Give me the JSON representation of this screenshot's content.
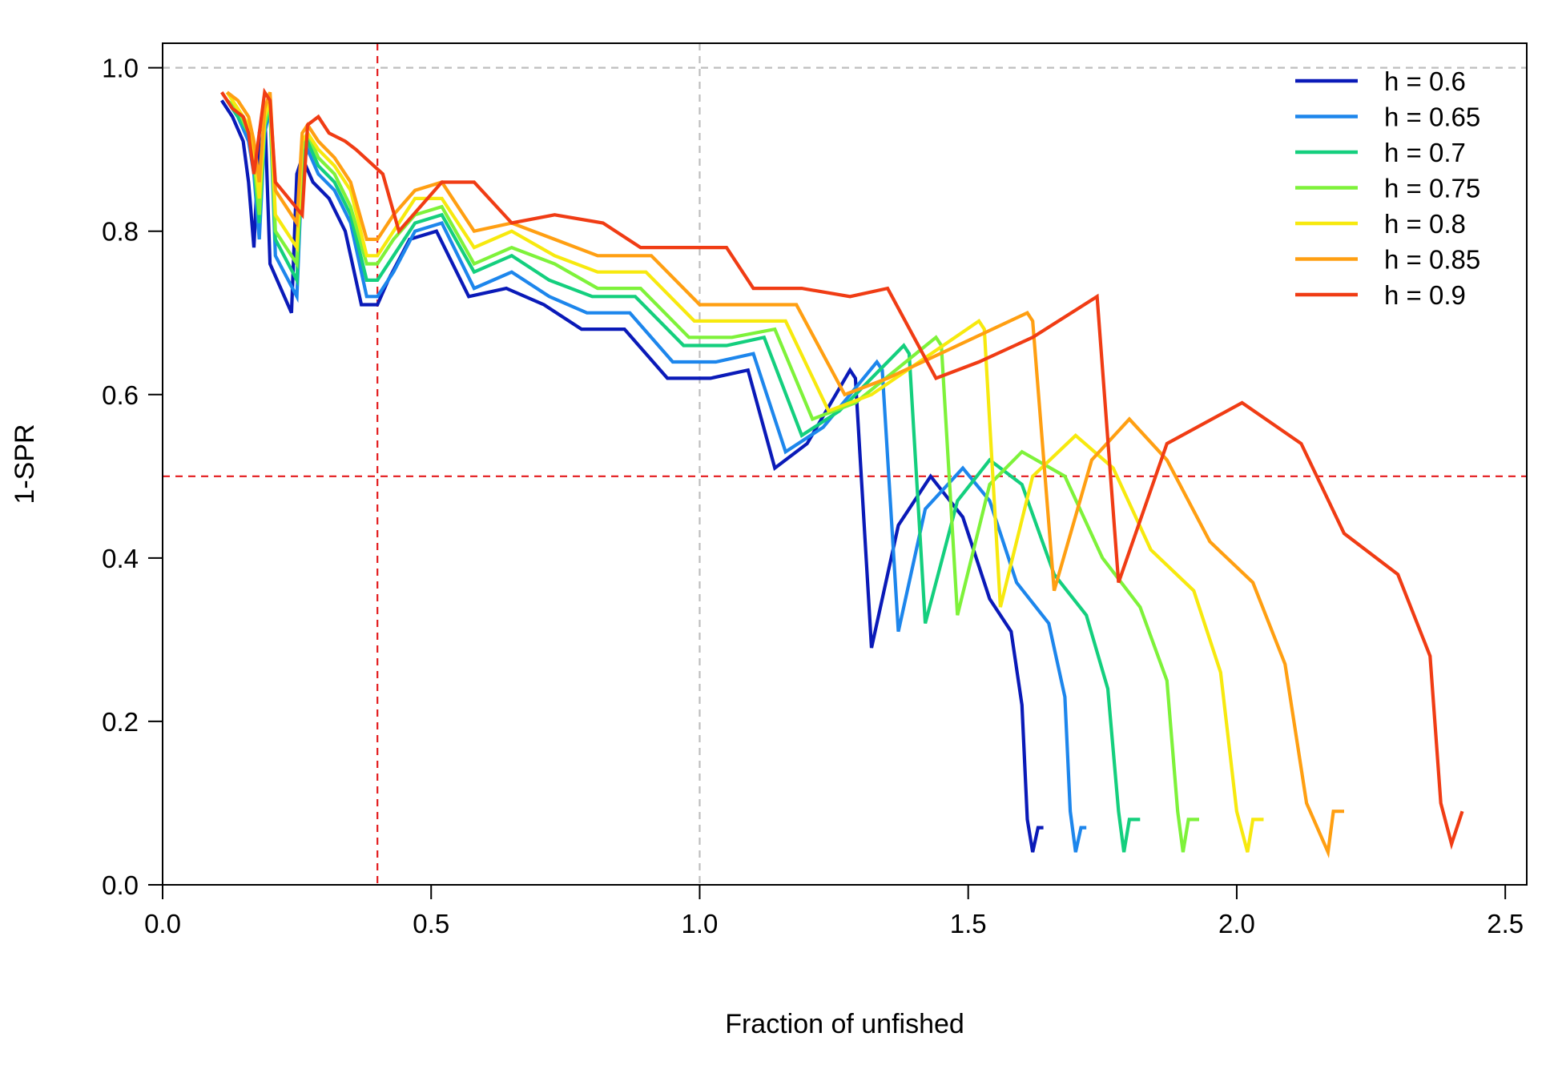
{
  "chart_data": {
    "type": "line",
    "title": "",
    "xlabel": "Fraction of unfished",
    "ylabel": "1-SPR",
    "xlim": [
      0,
      2.54
    ],
    "ylim": [
      0,
      1.03
    ],
    "xticks": [
      0.0,
      0.5,
      1.0,
      1.5,
      2.0,
      2.5
    ],
    "xtick_labels": [
      "0.0",
      "0.5",
      "1.0",
      "1.5",
      "2.0",
      "2.5"
    ],
    "yticks": [
      0.0,
      0.2,
      0.4,
      0.6,
      0.8,
      1.0
    ],
    "ytick_labels": [
      "0.0",
      "0.2",
      "0.4",
      "0.6",
      "0.8",
      "1.0"
    ],
    "grid": false,
    "legend_position": "top-right",
    "reference_lines": [
      {
        "orientation": "horizontal",
        "value": 1.0,
        "color": "#bebebe",
        "style": "dashed"
      },
      {
        "orientation": "vertical",
        "value": 1.0,
        "color": "#bebebe",
        "style": "dashed"
      },
      {
        "orientation": "horizontal",
        "value": 0.5,
        "color": "#e31a1c",
        "style": "dashed"
      },
      {
        "orientation": "vertical",
        "value": 0.4,
        "color": "#e31a1c",
        "style": "dashed"
      }
    ],
    "series": [
      {
        "name": "h = 0.6",
        "color": "#0a1ab8",
        "x": [
          0.11,
          0.13,
          0.15,
          0.16,
          0.17,
          0.18,
          0.19,
          0.2,
          0.24,
          0.25,
          0.26,
          0.28,
          0.31,
          0.34,
          0.37,
          0.4,
          0.42,
          0.46,
          0.51,
          0.57,
          0.64,
          0.71,
          0.78,
          0.86,
          0.94,
          1.02,
          1.09,
          1.14,
          1.2,
          1.28,
          1.29,
          1.32,
          1.37,
          1.43,
          1.49,
          1.54,
          1.58,
          1.6,
          1.61,
          1.62,
          1.63,
          1.64
        ],
        "y": [
          0.96,
          0.94,
          0.91,
          0.86,
          0.78,
          0.92,
          0.95,
          0.76,
          0.7,
          0.87,
          0.89,
          0.86,
          0.84,
          0.8,
          0.71,
          0.71,
          0.74,
          0.79,
          0.8,
          0.72,
          0.73,
          0.71,
          0.68,
          0.68,
          0.62,
          0.62,
          0.63,
          0.51,
          0.54,
          0.63,
          0.62,
          0.29,
          0.44,
          0.5,
          0.45,
          0.35,
          0.31,
          0.22,
          0.08,
          0.04,
          0.07,
          0.07
        ]
      },
      {
        "name": "h = 0.65",
        "color": "#1d86ec",
        "x": [
          0.12,
          0.14,
          0.16,
          0.17,
          0.18,
          0.19,
          0.2,
          0.21,
          0.25,
          0.26,
          0.27,
          0.29,
          0.32,
          0.35,
          0.38,
          0.4,
          0.43,
          0.47,
          0.52,
          0.58,
          0.65,
          0.72,
          0.79,
          0.87,
          0.95,
          1.03,
          1.1,
          1.16,
          1.23,
          1.33,
          1.34,
          1.37,
          1.42,
          1.49,
          1.54,
          1.59,
          1.65,
          1.68,
          1.69,
          1.7,
          1.71,
          1.72
        ],
        "y": [
          0.96,
          0.94,
          0.91,
          0.87,
          0.79,
          0.92,
          0.95,
          0.77,
          0.72,
          0.88,
          0.9,
          0.87,
          0.85,
          0.81,
          0.72,
          0.72,
          0.75,
          0.8,
          0.81,
          0.73,
          0.75,
          0.72,
          0.7,
          0.7,
          0.64,
          0.64,
          0.65,
          0.53,
          0.56,
          0.64,
          0.63,
          0.31,
          0.46,
          0.51,
          0.47,
          0.37,
          0.32,
          0.23,
          0.09,
          0.04,
          0.07,
          0.07
        ]
      },
      {
        "name": "h = 0.7",
        "color": "#14cf7e",
        "x": [
          0.12,
          0.14,
          0.16,
          0.17,
          0.18,
          0.19,
          0.2,
          0.21,
          0.25,
          0.26,
          0.27,
          0.29,
          0.32,
          0.35,
          0.38,
          0.4,
          0.43,
          0.47,
          0.52,
          0.58,
          0.65,
          0.72,
          0.8,
          0.88,
          0.97,
          1.05,
          1.12,
          1.19,
          1.26,
          1.38,
          1.39,
          1.42,
          1.48,
          1.54,
          1.6,
          1.66,
          1.72,
          1.76,
          1.78,
          1.79,
          1.8,
          1.82
        ],
        "y": [
          0.96,
          0.94,
          0.92,
          0.88,
          0.81,
          0.93,
          0.95,
          0.79,
          0.74,
          0.89,
          0.91,
          0.88,
          0.86,
          0.82,
          0.74,
          0.74,
          0.77,
          0.81,
          0.82,
          0.75,
          0.77,
          0.74,
          0.72,
          0.72,
          0.66,
          0.66,
          0.67,
          0.55,
          0.58,
          0.66,
          0.65,
          0.32,
          0.47,
          0.52,
          0.49,
          0.38,
          0.33,
          0.24,
          0.09,
          0.04,
          0.08,
          0.08
        ]
      },
      {
        "name": "h = 0.75",
        "color": "#7ef23a",
        "x": [
          0.12,
          0.14,
          0.16,
          0.17,
          0.18,
          0.19,
          0.2,
          0.21,
          0.25,
          0.26,
          0.27,
          0.29,
          0.32,
          0.35,
          0.38,
          0.4,
          0.43,
          0.47,
          0.52,
          0.58,
          0.65,
          0.73,
          0.81,
          0.89,
          0.98,
          1.06,
          1.14,
          1.21,
          1.29,
          1.44,
          1.45,
          1.48,
          1.54,
          1.6,
          1.68,
          1.75,
          1.82,
          1.87,
          1.89,
          1.9,
          1.91,
          1.93
        ],
        "y": [
          0.96,
          0.95,
          0.92,
          0.89,
          0.82,
          0.93,
          0.96,
          0.8,
          0.76,
          0.9,
          0.92,
          0.89,
          0.87,
          0.83,
          0.76,
          0.76,
          0.79,
          0.82,
          0.83,
          0.76,
          0.78,
          0.76,
          0.73,
          0.73,
          0.67,
          0.67,
          0.68,
          0.57,
          0.59,
          0.67,
          0.66,
          0.33,
          0.49,
          0.53,
          0.5,
          0.4,
          0.34,
          0.25,
          0.09,
          0.04,
          0.08,
          0.08
        ]
      },
      {
        "name": "h = 0.8",
        "color": "#f7e90e",
        "x": [
          0.12,
          0.14,
          0.16,
          0.17,
          0.18,
          0.19,
          0.2,
          0.21,
          0.25,
          0.26,
          0.27,
          0.29,
          0.32,
          0.35,
          0.38,
          0.4,
          0.43,
          0.47,
          0.52,
          0.58,
          0.65,
          0.73,
          0.81,
          0.9,
          0.99,
          1.08,
          1.16,
          1.24,
          1.32,
          1.52,
          1.53,
          1.56,
          1.62,
          1.7,
          1.77,
          1.84,
          1.92,
          1.97,
          2.0,
          2.02,
          2.03,
          2.05
        ],
        "y": [
          0.97,
          0.95,
          0.93,
          0.9,
          0.84,
          0.94,
          0.96,
          0.82,
          0.78,
          0.91,
          0.92,
          0.9,
          0.88,
          0.85,
          0.77,
          0.77,
          0.8,
          0.84,
          0.84,
          0.78,
          0.8,
          0.77,
          0.75,
          0.75,
          0.69,
          0.69,
          0.69,
          0.58,
          0.6,
          0.69,
          0.68,
          0.34,
          0.5,
          0.55,
          0.51,
          0.41,
          0.36,
          0.26,
          0.09,
          0.04,
          0.08,
          0.08
        ]
      },
      {
        "name": "h = 0.85",
        "color": "#ff9f12",
        "x": [
          0.12,
          0.14,
          0.16,
          0.17,
          0.18,
          0.19,
          0.2,
          0.21,
          0.25,
          0.26,
          0.27,
          0.29,
          0.32,
          0.35,
          0.38,
          0.4,
          0.43,
          0.47,
          0.52,
          0.58,
          0.65,
          0.73,
          0.81,
          0.91,
          1.0,
          1.09,
          1.18,
          1.27,
          1.35,
          1.61,
          1.62,
          1.66,
          1.73,
          1.8,
          1.87,
          1.95,
          2.03,
          2.09,
          2.13,
          2.17,
          2.18,
          2.2
        ],
        "y": [
          0.97,
          0.96,
          0.94,
          0.91,
          0.86,
          0.95,
          0.97,
          0.85,
          0.81,
          0.92,
          0.93,
          0.91,
          0.89,
          0.86,
          0.79,
          0.79,
          0.82,
          0.85,
          0.86,
          0.8,
          0.81,
          0.79,
          0.77,
          0.77,
          0.71,
          0.71,
          0.71,
          0.6,
          0.62,
          0.7,
          0.69,
          0.36,
          0.52,
          0.57,
          0.52,
          0.42,
          0.37,
          0.27,
          0.1,
          0.04,
          0.09,
          0.09
        ]
      },
      {
        "name": "h = 0.9",
        "color": "#f03c14",
        "x": [
          0.11,
          0.13,
          0.15,
          0.16,
          0.17,
          0.19,
          0.2,
          0.21,
          0.26,
          0.27,
          0.29,
          0.31,
          0.34,
          0.36,
          0.41,
          0.44,
          0.52,
          0.58,
          0.65,
          0.73,
          0.82,
          0.89,
          0.97,
          1.05,
          1.1,
          1.19,
          1.28,
          1.35,
          1.44,
          1.52,
          1.62,
          1.74,
          1.78,
          1.87,
          2.01,
          2.12,
          2.2,
          2.3,
          2.36,
          2.38,
          2.4,
          2.42
        ],
        "y": [
          0.97,
          0.95,
          0.94,
          0.92,
          0.87,
          0.97,
          0.96,
          0.86,
          0.82,
          0.93,
          0.94,
          0.92,
          0.91,
          0.9,
          0.87,
          0.8,
          0.86,
          0.86,
          0.81,
          0.82,
          0.81,
          0.78,
          0.78,
          0.78,
          0.73,
          0.73,
          0.72,
          0.73,
          0.62,
          0.64,
          0.67,
          0.72,
          0.37,
          0.54,
          0.59,
          0.54,
          0.43,
          0.38,
          0.28,
          0.1,
          0.05,
          0.09
        ]
      }
    ]
  }
}
